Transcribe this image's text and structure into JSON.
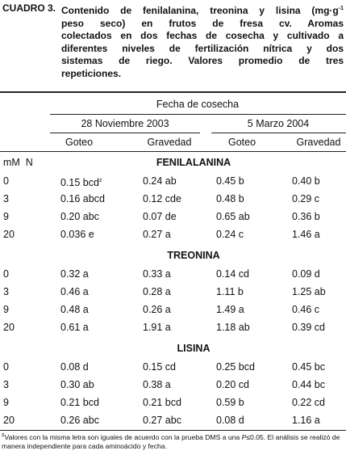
{
  "caption": {
    "label": "CUADRO 3.",
    "lines": [
      "Contenido de fenilalanina, treonina y lisina (mg·g",
      "peso seco) en frutos de fresa cv. Aromas",
      "colectados en dos fechas de cosecha y cultivado a",
      "diferentes niveles de fertilización nítrica y dos",
      "sistemas de riego. Valores promedio de tres",
      "repeticiones."
    ],
    "superscript": "-1"
  },
  "table": {
    "group_header": "Fecha de cosecha",
    "dates": [
      "28 Noviembre 2003",
      "5 Marzo 2004"
    ],
    "columns": [
      "Goteo",
      "Gravedad",
      "Goteo",
      "Gravedad"
    ],
    "row_header": "mM  N",
    "footnote_marker": "z",
    "sections": [
      {
        "name": "FENILALANINA",
        "rows": [
          [
            "0",
            "0.15 bcd",
            "0.24 ab",
            "0.45 b",
            "0.40 b"
          ],
          [
            "3",
            "0.16 abcd",
            "0.12 cde",
            "0.48 b",
            "0.29 c"
          ],
          [
            "9",
            "0.20 abc",
            "0.07 de",
            "0.65 ab",
            "0.36 b"
          ],
          [
            "20",
            "0.036 e",
            "0.27 a",
            "0.24 c",
            "1.46 a"
          ]
        ]
      },
      {
        "name": "TREONINA",
        "rows": [
          [
            "0",
            "0.32 a",
            "0.33 a",
            "0.14 cd",
            "0.09 d"
          ],
          [
            "3",
            "0.46 a",
            "0.28 a",
            "1.11 b",
            "1.25 ab"
          ],
          [
            "9",
            "0.48 a",
            "0.26 a",
            "1.49 a",
            "0.46 c"
          ],
          [
            "20",
            "0.61 a",
            "1.91 a",
            "1.18 ab",
            "0.39 cd"
          ]
        ]
      },
      {
        "name": "LISINA",
        "rows": [
          [
            "0",
            "0.08 d",
            "0.15 cd",
            "0.25 bcd",
            "0.45 bc"
          ],
          [
            "3",
            "0.30 ab",
            "0.38 a",
            "0.20 cd",
            "0.44 bc"
          ],
          [
            "9",
            "0.21 bcd",
            "0.21 bcd",
            "0.59 b",
            "0.22 cd"
          ],
          [
            "20",
            "0.26 abc",
            "0.27 abc",
            "0.08 d",
            "1.16 a"
          ]
        ]
      }
    ]
  },
  "footnote": {
    "marker": "z",
    "text_before": "Valores con la misma letra son iguales de acuerdo con la prueba DMS a una ",
    "italic": "P",
    "text_after": "≤0.05. El análisis se realizó de manera independiente para cada aminoácido y fecha."
  }
}
